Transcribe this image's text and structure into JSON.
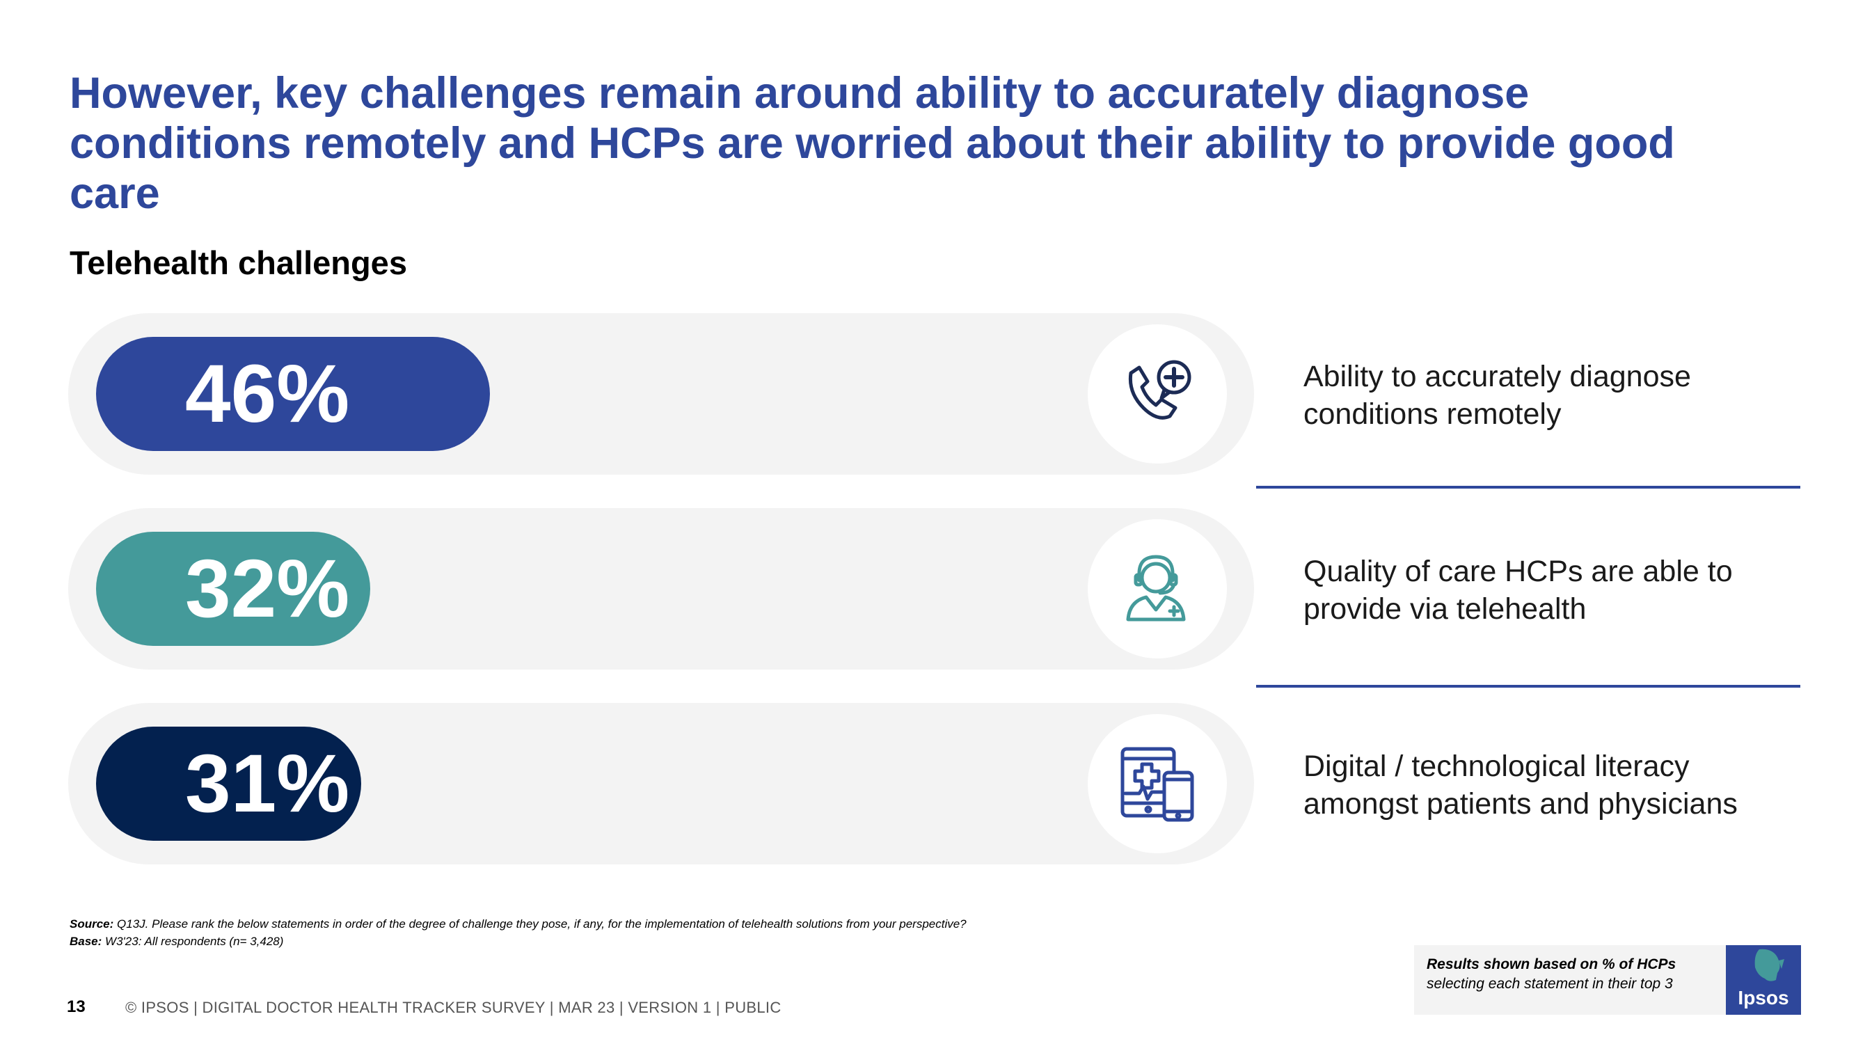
{
  "title": "However, key challenges remain around ability to accurately diagnose conditions remotely and HCPs are worried about their ability to provide good care",
  "subtitle": "Telehealth challenges",
  "chart_data": {
    "type": "bar",
    "title": "Telehealth challenges",
    "unit": "%",
    "xlim": [
      0,
      100
    ],
    "categories": [
      "Ability to accurately diagnose conditions remotely",
      "Quality of care HCPs are able to provide via telehealth",
      "Digital / technological literacy amongst patients and physicians"
    ],
    "values": [
      46,
      32,
      31
    ],
    "labels": [
      "46%",
      "32%",
      "31%"
    ],
    "colors": [
      "#2e479b",
      "#449a9a",
      "#03214f"
    ]
  },
  "rows": [
    {
      "value_label": "46%",
      "description": "Ability to accurately diagnose conditions remotely",
      "icon": "telehealth-phone-plus-icon",
      "icon_color": "#1c2b55"
    },
    {
      "value_label": "32%",
      "description": "Quality of care HCPs are able to provide via telehealth",
      "icon": "nurse-headset-icon",
      "icon_color": "#449a9a"
    },
    {
      "value_label": "31%",
      "description": "Digital / technological literacy amongst patients and physicians",
      "icon": "tablet-phone-medical-icon",
      "icon_color": "#2e479b"
    }
  ],
  "source": {
    "source_label": "Source:",
    "source_text": "Q13J. Please rank the below statements in order of the degree of challenge they pose, if any, for the implementation of telehealth solutions from your perspective?",
    "base_label": "Base:",
    "base_text": "W3'23: All respondents (n= 3,428)"
  },
  "note": {
    "bold": "Results shown based on % of HCPs",
    "normal": "selecting each statement in their top 3"
  },
  "footer": {
    "page_number": "13",
    "text": "© IPSOS | DIGITAL DOCTOR HEALTH TRACKER SURVEY | MAR 23 | VERSION 1 | PUBLIC"
  },
  "logo": {
    "text": "Ipsos"
  },
  "colors": {
    "title": "#2e479b",
    "track": "#f3f3f3",
    "divider": "#2e479b"
  }
}
